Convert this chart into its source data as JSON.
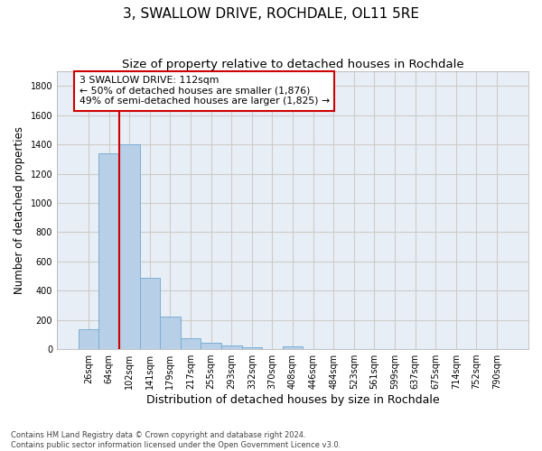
{
  "title": "3, SWALLOW DRIVE, ROCHDALE, OL11 5RE",
  "subtitle": "Size of property relative to detached houses in Rochdale",
  "xlabel": "Distribution of detached houses by size in Rochdale",
  "ylabel": "Number of detached properties",
  "bar_labels": [
    "26sqm",
    "64sqm",
    "102sqm",
    "141sqm",
    "179sqm",
    "217sqm",
    "255sqm",
    "293sqm",
    "332sqm",
    "370sqm",
    "408sqm",
    "446sqm",
    "484sqm",
    "523sqm",
    "561sqm",
    "599sqm",
    "637sqm",
    "675sqm",
    "714sqm",
    "752sqm",
    "790sqm"
  ],
  "bar_values": [
    135,
    1340,
    1400,
    490,
    225,
    75,
    42,
    27,
    13,
    0,
    20,
    0,
    0,
    0,
    0,
    0,
    0,
    0,
    0,
    0,
    0
  ],
  "bar_color": "#b8cfe8",
  "bar_edge_color": "#7aafd4",
  "vline_x_idx": 2,
  "annotation_box_text": "3 SWALLOW DRIVE: 112sqm\n← 50% of detached houses are smaller (1,876)\n49% of semi-detached houses are larger (1,825) →",
  "vline_color": "#cc0000",
  "box_edge_color": "#cc0000",
  "ylim": [
    0,
    1900
  ],
  "yticks": [
    0,
    200,
    400,
    600,
    800,
    1000,
    1200,
    1400,
    1600,
    1800
  ],
  "grid_color": "#cccccc",
  "bg_color": "#e8eef5",
  "footnote": "Contains HM Land Registry data © Crown copyright and database right 2024.\nContains public sector information licensed under the Open Government Licence v3.0.",
  "title_fontsize": 11,
  "subtitle_fontsize": 9.5,
  "tick_fontsize": 7,
  "ylabel_fontsize": 8.5,
  "xlabel_fontsize": 9,
  "annotation_fontsize": 7.8
}
